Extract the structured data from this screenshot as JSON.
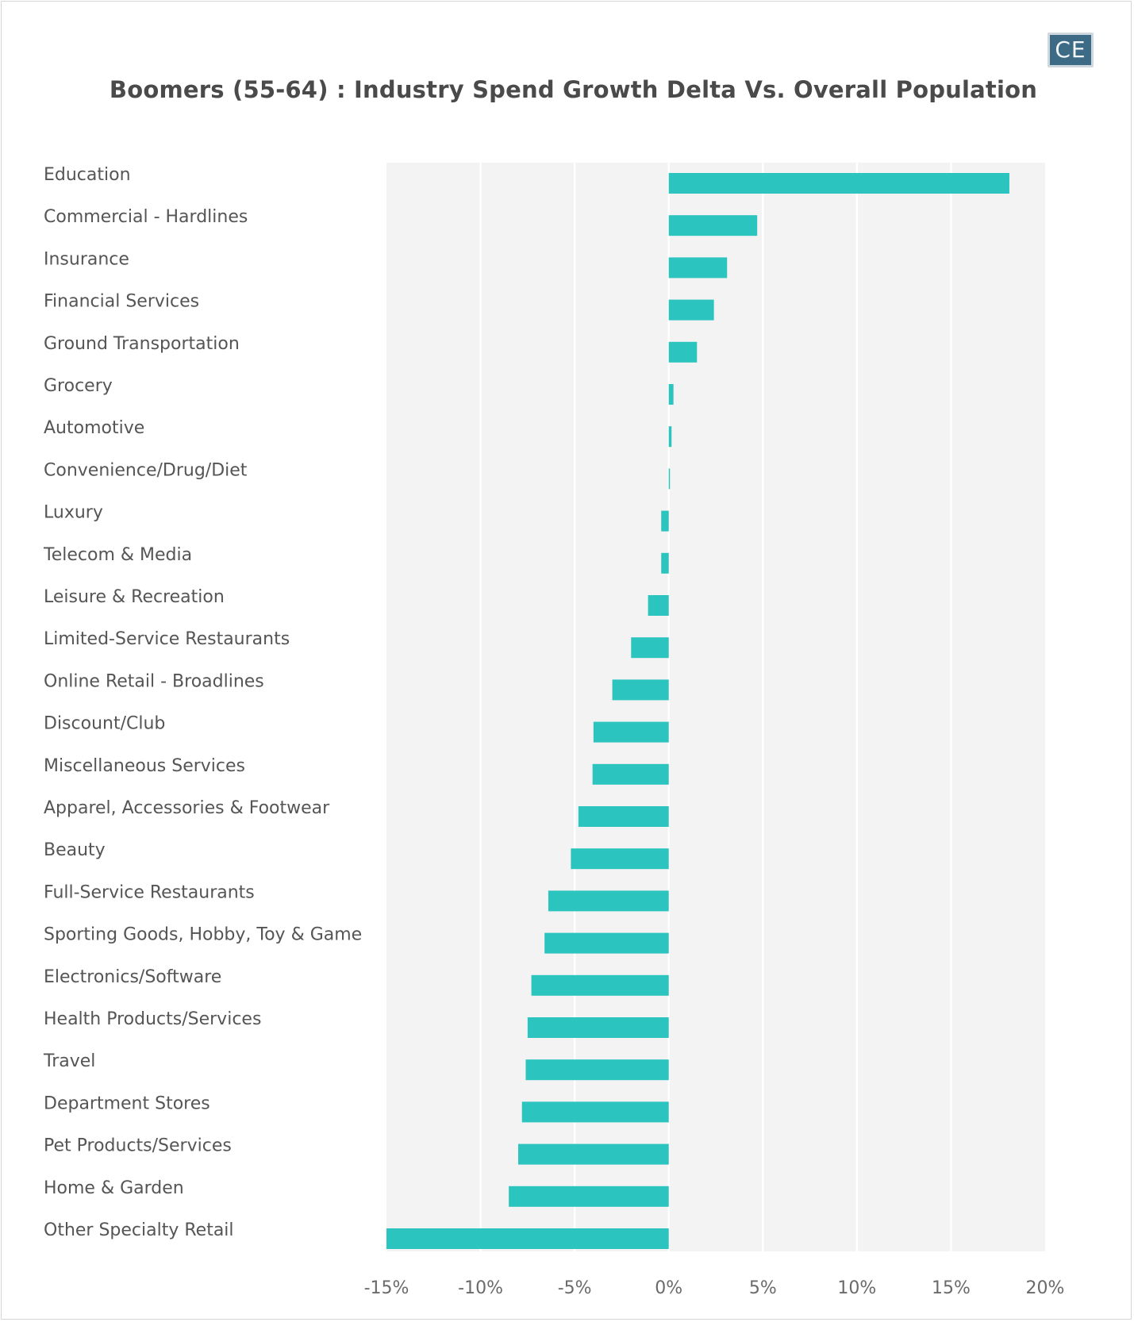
{
  "logo": {
    "text": "CE"
  },
  "chart_data": {
    "type": "bar",
    "orientation": "horizontal",
    "title": "Boomers (55-64) : Industry Spend Growth Delta Vs. Overall Population",
    "xlabel": "",
    "ylabel": "",
    "xlim": [
      -15,
      20
    ],
    "x_ticks": [
      "-15%",
      "-10%",
      "-5%",
      "0%",
      "5%",
      "10%",
      "15%",
      "20%"
    ],
    "grid": "vertical",
    "legend": "none",
    "bar_color": "#2cc4be",
    "plot_background": "#f3f3f3",
    "categories": [
      "Education",
      "Commercial - Hardlines",
      "Insurance",
      "Financial Services",
      "Ground Transportation",
      "Grocery",
      "Automotive",
      "Convenience/Drug/Diet",
      "Luxury",
      "Telecom & Media",
      "Leisure & Recreation",
      "Limited-Service Restaurants",
      "Online Retail - Broadlines",
      "Discount/Club",
      "Miscellaneous Services",
      "Apparel, Accessories & Footwear",
      "Beauty",
      "Full-Service Restaurants",
      "Sporting Goods, Hobby, Toy & Game",
      "Electronics/Software",
      "Health Products/Services",
      "Travel",
      "Department Stores",
      "Pet Products/Services",
      "Home & Garden",
      "Other Specialty Retail"
    ],
    "values": [
      18.1,
      4.7,
      3.1,
      2.4,
      1.5,
      0.25,
      0.15,
      0.05,
      -0.4,
      -0.4,
      -1.1,
      -2.0,
      -3.0,
      -4.0,
      -4.05,
      -4.8,
      -5.2,
      -6.4,
      -6.6,
      -7.3,
      -7.5,
      -7.6,
      -7.8,
      -8.0,
      -8.5,
      -15.0
    ]
  }
}
